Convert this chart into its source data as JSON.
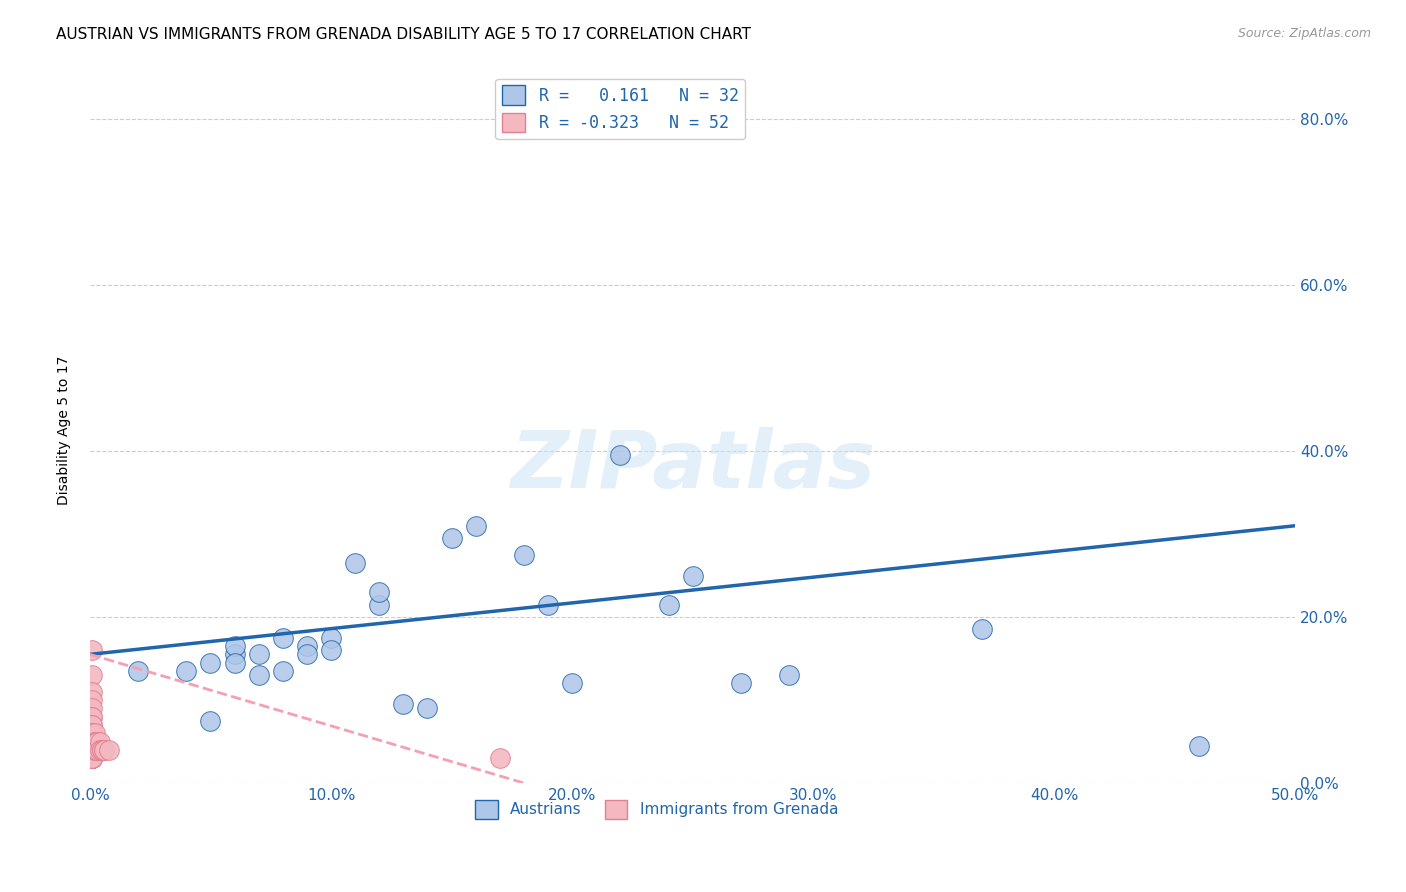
{
  "title": "AUSTRIAN VS IMMIGRANTS FROM GRENADA DISABILITY AGE 5 TO 17 CORRELATION CHART",
  "source": "Source: ZipAtlas.com",
  "ylabel": "Disability Age 5 to 17",
  "xlim": [
    0.0,
    0.5
  ],
  "ylim": [
    0.0,
    0.85
  ],
  "xticks": [
    0.0,
    0.1,
    0.2,
    0.3,
    0.4,
    0.5
  ],
  "yticks": [
    0.0,
    0.2,
    0.4,
    0.6,
    0.8
  ],
  "background_color": "#ffffff",
  "grid_color": "#cccccc",
  "austrians_color": "#aec6e8",
  "grenada_color": "#f4b8c1",
  "trend_austrians_color": "#2166ac",
  "trend_grenada_color": "#f4a0b0",
  "legend_r_austrians": "R =   0.161   N = 32",
  "legend_r_grenada": "R = -0.323   N = 52",
  "legend_austrians": "Austrians",
  "legend_grenada": "Immigrants from Grenada",
  "watermark": "ZIPatlas",
  "title_fontsize": 11,
  "axis_label_fontsize": 10,
  "tick_fontsize": 11,
  "source_fontsize": 9,
  "austrians_x": [
    0.02,
    0.04,
    0.05,
    0.05,
    0.06,
    0.06,
    0.06,
    0.07,
    0.07,
    0.08,
    0.08,
    0.09,
    0.09,
    0.1,
    0.1,
    0.11,
    0.12,
    0.12,
    0.13,
    0.14,
    0.15,
    0.16,
    0.18,
    0.19,
    0.2,
    0.22,
    0.24,
    0.25,
    0.27,
    0.29,
    0.37,
    0.46
  ],
  "austrians_y": [
    0.135,
    0.135,
    0.145,
    0.075,
    0.155,
    0.165,
    0.145,
    0.155,
    0.13,
    0.135,
    0.175,
    0.165,
    0.155,
    0.175,
    0.16,
    0.265,
    0.215,
    0.23,
    0.095,
    0.09,
    0.295,
    0.31,
    0.275,
    0.215,
    0.12,
    0.395,
    0.215,
    0.25,
    0.12,
    0.13,
    0.185,
    0.045
  ],
  "grenada_x": [
    0.001,
    0.001,
    0.001,
    0.001,
    0.001,
    0.001,
    0.001,
    0.001,
    0.001,
    0.001,
    0.001,
    0.001,
    0.001,
    0.001,
    0.001,
    0.001,
    0.001,
    0.001,
    0.001,
    0.001,
    0.001,
    0.001,
    0.001,
    0.001,
    0.001,
    0.001,
    0.001,
    0.001,
    0.001,
    0.001,
    0.001,
    0.001,
    0.001,
    0.001,
    0.001,
    0.002,
    0.002,
    0.002,
    0.002,
    0.002,
    0.002,
    0.003,
    0.003,
    0.003,
    0.004,
    0.004,
    0.005,
    0.005,
    0.006,
    0.006,
    0.008,
    0.17
  ],
  "grenada_y": [
    0.16,
    0.13,
    0.11,
    0.1,
    0.09,
    0.08,
    0.08,
    0.07,
    0.07,
    0.06,
    0.06,
    0.06,
    0.06,
    0.05,
    0.05,
    0.05,
    0.05,
    0.05,
    0.04,
    0.04,
    0.04,
    0.04,
    0.04,
    0.04,
    0.04,
    0.04,
    0.03,
    0.03,
    0.03,
    0.03,
    0.03,
    0.03,
    0.03,
    0.03,
    0.03,
    0.06,
    0.05,
    0.05,
    0.04,
    0.04,
    0.04,
    0.05,
    0.05,
    0.04,
    0.05,
    0.04,
    0.04,
    0.04,
    0.04,
    0.04,
    0.04,
    0.03
  ],
  "trend_austrians_x0": 0.0,
  "trend_austrians_x1": 0.5,
  "trend_austrians_y0": 0.155,
  "trend_austrians_y1": 0.31,
  "trend_grenada_x0": 0.0,
  "trend_grenada_x1": 0.18,
  "trend_grenada_y0": 0.155,
  "trend_grenada_y1": 0.0
}
